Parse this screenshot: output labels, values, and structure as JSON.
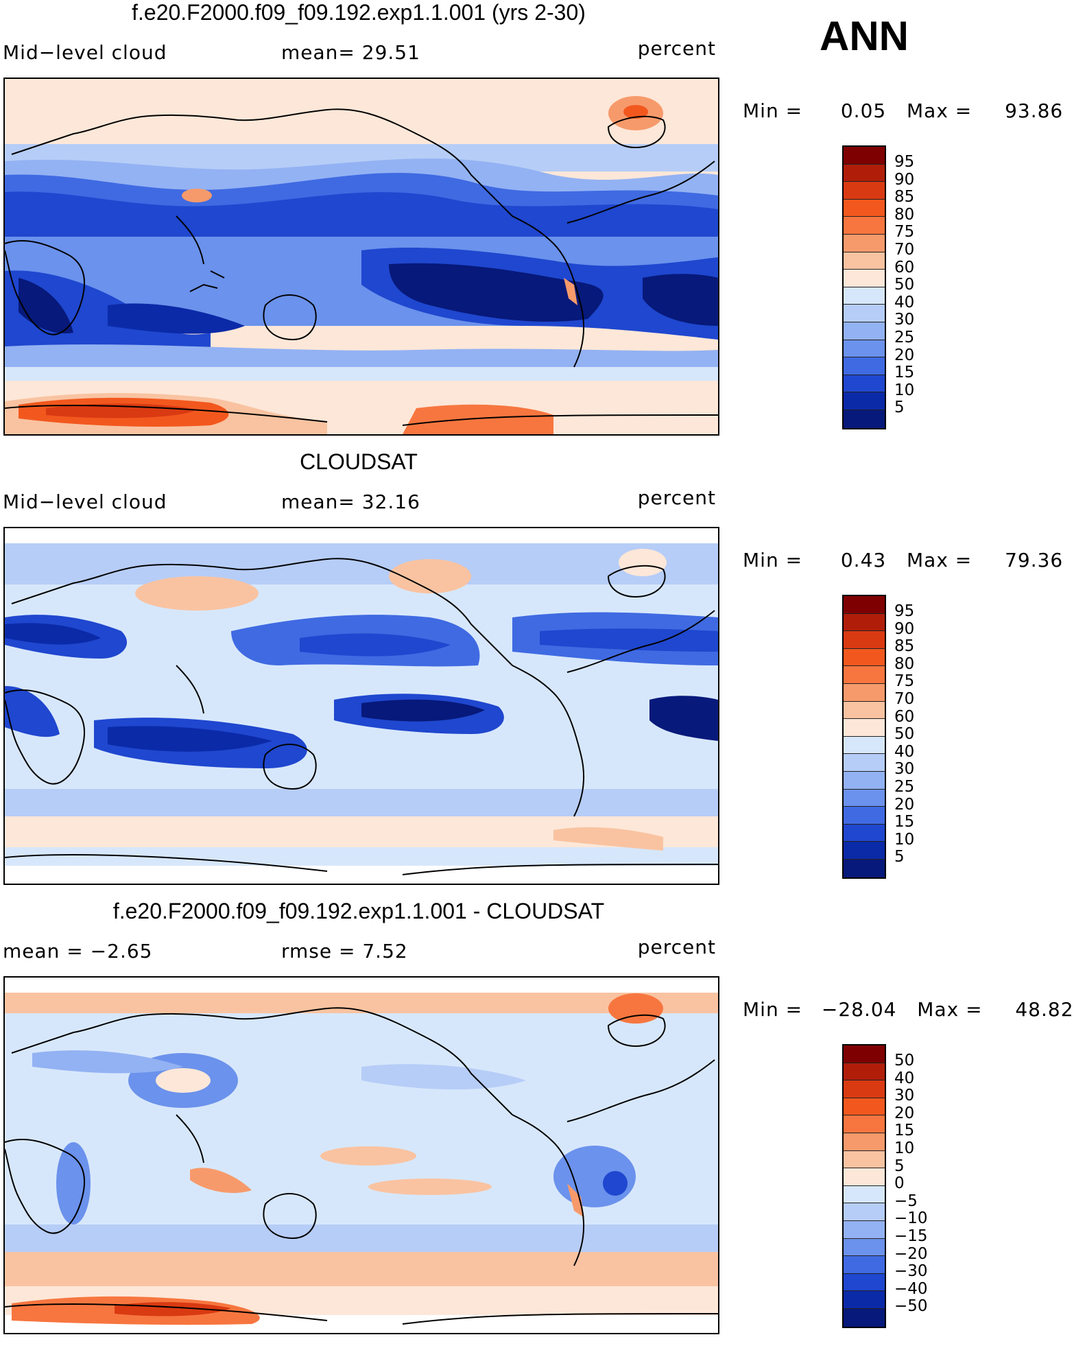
{
  "season": "ANN",
  "panels": [
    {
      "title": "f.e20.F2000.f09_f09.192.exp1.1.001 (yrs 2-30)",
      "left_label": "Mid−level cloud",
      "center_label": "mean=   29.51",
      "units": "percent",
      "min_label": "Min =",
      "min_value": "0.05",
      "max_label": "Max =",
      "max_value": "93.86",
      "levels": [
        "95",
        "90",
        "85",
        "80",
        "75",
        "70",
        "60",
        "50",
        "40",
        "30",
        "25",
        "20",
        "15",
        "10",
        "5"
      ],
      "colors": [
        "#7f0000",
        "#b01e0a",
        "#d93a12",
        "#f2581e",
        "#f7763f",
        "#f79a6b",
        "#f9c3a1",
        "#fde7d8",
        "#d7e7fb",
        "#b6cdf7",
        "#93b2f3",
        "#6b92ec",
        "#3f6ae2",
        "#1f47cf",
        "#0b2aa8",
        "#07197a"
      ]
    },
    {
      "title": "CLOUDSAT",
      "left_label": "Mid−level cloud",
      "center_label": "mean=   32.16",
      "units": "percent",
      "min_label": "Min =",
      "min_value": "0.43",
      "max_label": "Max =",
      "max_value": "79.36",
      "levels": [
        "95",
        "90",
        "85",
        "80",
        "75",
        "70",
        "60",
        "50",
        "40",
        "30",
        "25",
        "20",
        "15",
        "10",
        "5"
      ],
      "colors": [
        "#7f0000",
        "#b01e0a",
        "#d93a12",
        "#f2581e",
        "#f7763f",
        "#f79a6b",
        "#f9c3a1",
        "#fde7d8",
        "#d7e7fb",
        "#b6cdf7",
        "#93b2f3",
        "#6b92ec",
        "#3f6ae2",
        "#1f47cf",
        "#0b2aa8",
        "#07197a"
      ]
    },
    {
      "title": "f.e20.F2000.f09_f09.192.exp1.1.001 - CLOUDSAT",
      "left_label": "mean =   −2.65",
      "center_label": "rmse =    7.52",
      "units": "percent",
      "min_label": "Min =",
      "min_value": "−28.04",
      "max_label": "Max =",
      "max_value": "48.82",
      "levels": [
        "50",
        "40",
        "30",
        "20",
        "15",
        "10",
        "5",
        "0",
        "−5",
        "−10",
        "−15",
        "−20",
        "−30",
        "−40",
        "−50"
      ],
      "colors": [
        "#7f0000",
        "#b01e0a",
        "#d93a12",
        "#f2581e",
        "#f7763f",
        "#f79a6b",
        "#f9c3a1",
        "#fde7d8",
        "#d7e7fb",
        "#b6cdf7",
        "#93b2f3",
        "#6b92ec",
        "#3f6ae2",
        "#1f47cf",
        "#0b2aa8",
        "#07197a"
      ]
    }
  ]
}
